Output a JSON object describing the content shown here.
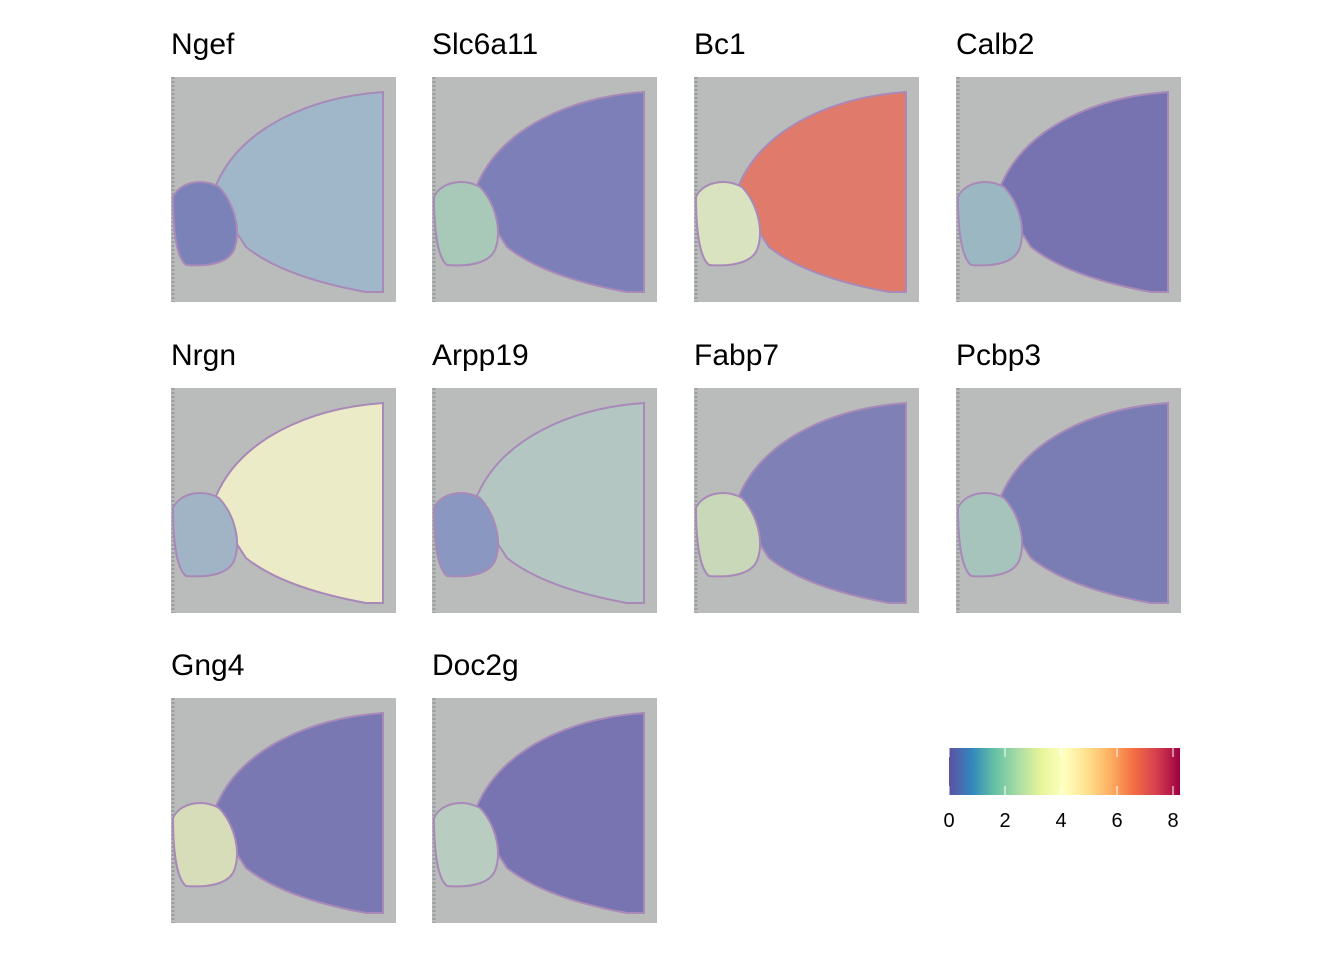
{
  "chart_data": {
    "type": "spatial",
    "panels": [
      {
        "title": "Ngef",
        "color": "#9fb7c9",
        "bulb_color": "#7b82b8"
      },
      {
        "title": "Slc6a11",
        "color": "#7d7fb8",
        "bulb_color": "#a8c9b8"
      },
      {
        "title": "Bc1",
        "color": "#e07a6a",
        "bulb_color": "#d9e3c0"
      },
      {
        "title": "Calb2",
        "color": "#7773b0",
        "bulb_color": "#9bb8c2"
      },
      {
        "title": "Nrgn",
        "color": "#ecebc8",
        "bulb_color": "#a0b4c6"
      },
      {
        "title": "Arpp19",
        "color": "#b3c6c2",
        "bulb_color": "#8a97c0"
      },
      {
        "title": "Fabp7",
        "color": "#7f80b6",
        "bulb_color": "#c9d8b8"
      },
      {
        "title": "Pcbp3",
        "color": "#7a7db4",
        "bulb_color": "#a7c4bc"
      },
      {
        "title": "Gng4",
        "color": "#7a78b3",
        "bulb_color": "#d6ddb8"
      },
      {
        "title": "Doc2g",
        "color": "#7874b1",
        "bulb_color": "#b8ccc0"
      }
    ],
    "colorbar": {
      "lim": [
        0,
        8.25
      ],
      "ticks": [
        0,
        2,
        4,
        6,
        8
      ],
      "colors": [
        "#5E4FA2",
        "#3288BD",
        "#66C2A5",
        "#ABDDA4",
        "#E6F598",
        "#FFFFBF",
        "#FEE08B",
        "#FDAE61",
        "#F46D43",
        "#D53E4F",
        "#9E0142"
      ]
    }
  }
}
